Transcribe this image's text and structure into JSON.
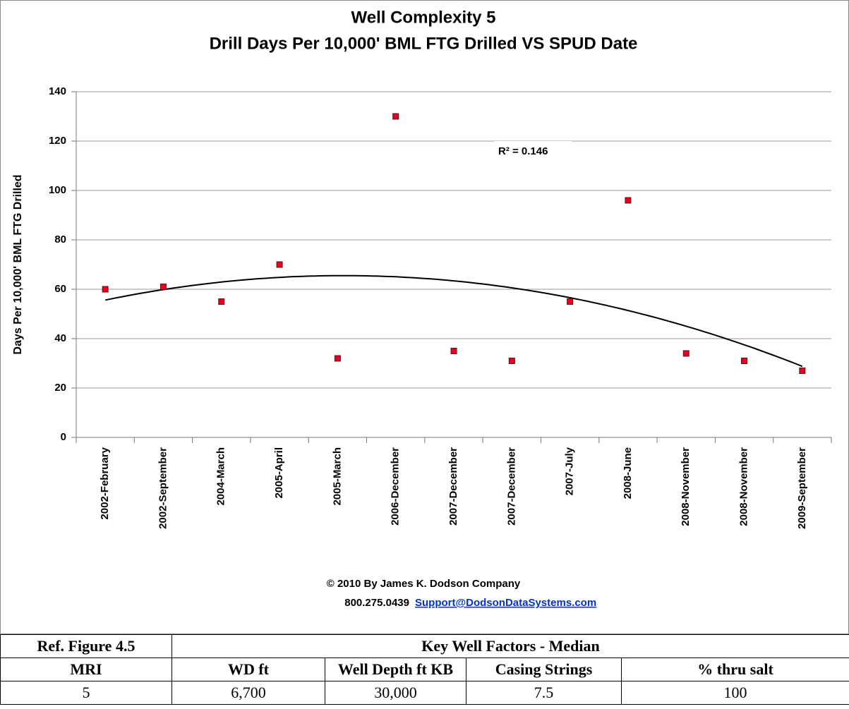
{
  "chart_data": {
    "type": "scatter",
    "title": "Well Complexity 5",
    "subtitle": "Drill Days Per 10,000' BML FTG Drilled VS SPUD Date",
    "y_label": "Days Per 10,000' BML FTG Drilled",
    "categories": [
      "2002-February",
      "2002-September",
      "2004-March",
      "2005-April",
      "2005-March",
      "2006-December",
      "2007-December",
      "2007-December",
      "2007-July",
      "2008-June",
      "2008-November",
      "2008-November",
      "2009-September"
    ],
    "series": [
      {
        "color": "#e8001c",
        "values": [
          60,
          61,
          55,
          70,
          32,
          130,
          35,
          31,
          55,
          96,
          34,
          31,
          27
        ]
      }
    ],
    "trendline": {
      "type": "polynomial",
      "order": 2,
      "label": "R² = 0.146"
    },
    "ylim": [
      0,
      140
    ],
    "yticks": [
      0,
      20,
      40,
      60,
      80,
      100,
      120,
      140
    ],
    "grid": true,
    "copyright": "© 2010 By James K. Dodson Company",
    "phone": "800.275.0439",
    "link": "Support@DodsonDataSystems.com"
  },
  "table": {
    "rows": [
      [
        "Ref. Figure 4.5",
        "Key Well Factors - Median"
      ],
      [
        "MRI",
        "WD  ft",
        "Well Depth ft KB",
        "Casing Strings",
        "% thru salt"
      ],
      [
        "5",
        "6,700",
        "30,000",
        "7.5",
        "100"
      ]
    ]
  }
}
